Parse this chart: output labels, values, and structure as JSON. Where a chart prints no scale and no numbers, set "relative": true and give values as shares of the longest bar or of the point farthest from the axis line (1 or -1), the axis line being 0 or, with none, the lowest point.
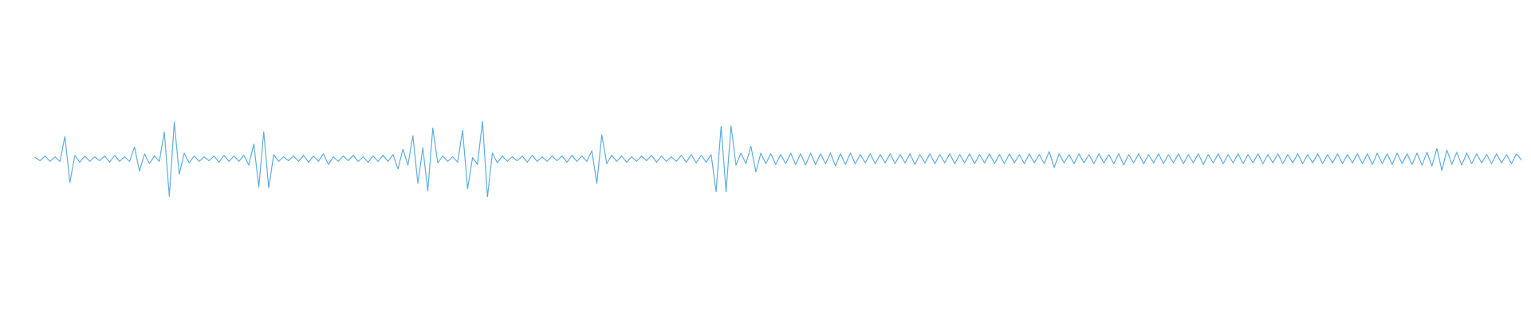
{
  "chart_data": {
    "type": "line",
    "relative": true,
    "categories": [
      null,
      null,
      null,
      null,
      null,
      null,
      null,
      null,
      null,
      null,
      null,
      null,
      null,
      null,
      null,
      null,
      null,
      null,
      null,
      null,
      null,
      null,
      null,
      null,
      null,
      null,
      null,
      null,
      null,
      null,
      null,
      null,
      null,
      null,
      null,
      null,
      null,
      null,
      null,
      null,
      null,
      null,
      null,
      null,
      null,
      null,
      null,
      null,
      null,
      null,
      null,
      null,
      null,
      null,
      null,
      null,
      null,
      null,
      null,
      null,
      null,
      null,
      null,
      null,
      null,
      null,
      null,
      null,
      null,
      null,
      null,
      null,
      null,
      null,
      null,
      null,
      null,
      null,
      null,
      null,
      null,
      null,
      null,
      null,
      null,
      null,
      null,
      null,
      null,
      null,
      null,
      null,
      null,
      null,
      null,
      null,
      null,
      null,
      null,
      null,
      null,
      null,
      null,
      null,
      null,
      null,
      null,
      null,
      null,
      null,
      null,
      null,
      null,
      null,
      null,
      null,
      null,
      null,
      null,
      null,
      null,
      null,
      null,
      null,
      null,
      null,
      null,
      null,
      null,
      null,
      null,
      null,
      null,
      null,
      null,
      null,
      null,
      null,
      null,
      null,
      null,
      null,
      null,
      null,
      null,
      null,
      null,
      null,
      null,
      null,
      null,
      null,
      null,
      null,
      null,
      null,
      null,
      null,
      null,
      null,
      null,
      null,
      null,
      null,
      null,
      null,
      null,
      null,
      null,
      null,
      null,
      null,
      null,
      null,
      null,
      null,
      null,
      null,
      null,
      null,
      null,
      null,
      null,
      null,
      null,
      null,
      null,
      null,
      null,
      null,
      null,
      null,
      null,
      null,
      null,
      null,
      null,
      null,
      null,
      null,
      null,
      null,
      null,
      null,
      null,
      null,
      null,
      null,
      null,
      null,
      null,
      null,
      null,
      null,
      null,
      null,
      null,
      null,
      null,
      null,
      null,
      null,
      null,
      null,
      null,
      null,
      null,
      null,
      null,
      null,
      null,
      null,
      null,
      null,
      null,
      null,
      null,
      null,
      null,
      null,
      null,
      null,
      null,
      null,
      null,
      null,
      null,
      null,
      null,
      null,
      null,
      null,
      null,
      null,
      null,
      null,
      null,
      null,
      null,
      null,
      null,
      null,
      null,
      null,
      null,
      null,
      null,
      null,
      null,
      null,
      null,
      null,
      null,
      null,
      null,
      null,
      null,
      null,
      null,
      null,
      null,
      null,
      null,
      null,
      null,
      null,
      null,
      null,
      null,
      null,
      null,
      null,
      null,
      null,
      null,
      null,
      null,
      null,
      null,
      null
    ],
    "series": [
      {
        "color": "#5dade2",
        "values": [
          0.52,
          0.48,
          0.54,
          0.47,
          0.53,
          0.47,
          0.8,
          0.19,
          0.55,
          0.46,
          0.54,
          0.47,
          0.53,
          0.48,
          0.54,
          0.46,
          0.55,
          0.47,
          0.53,
          0.47,
          0.66,
          0.34,
          0.57,
          0.44,
          0.54,
          0.47,
          0.86,
          0.01,
          0.99,
          0.3,
          0.58,
          0.45,
          0.54,
          0.47,
          0.53,
          0.48,
          0.54,
          0.46,
          0.55,
          0.47,
          0.54,
          0.47,
          0.55,
          0.42,
          0.7,
          0.13,
          0.86,
          0.12,
          0.56,
          0.47,
          0.53,
          0.48,
          0.54,
          0.47,
          0.55,
          0.46,
          0.54,
          0.47,
          0.57,
          0.43,
          0.53,
          0.47,
          0.54,
          0.48,
          0.55,
          0.47,
          0.53,
          0.46,
          0.54,
          0.47,
          0.55,
          0.47,
          0.56,
          0.37,
          0.63,
          0.42,
          0.81,
          0.18,
          0.65,
          0.08,
          0.91,
          0.45,
          0.54,
          0.47,
          0.53,
          0.46,
          0.88,
          0.11,
          0.52,
          0.43,
          1.0,
          0.0,
          0.58,
          0.45,
          0.54,
          0.47,
          0.53,
          0.48,
          0.54,
          0.46,
          0.55,
          0.47,
          0.53,
          0.47,
          0.54,
          0.48,
          0.54,
          0.46,
          0.55,
          0.47,
          0.54,
          0.47,
          0.61,
          0.18,
          0.82,
          0.44,
          0.55,
          0.47,
          0.54,
          0.46,
          0.53,
          0.47,
          0.54,
          0.48,
          0.55,
          0.46,
          0.54,
          0.47,
          0.53,
          0.47,
          0.55,
          0.46,
          0.56,
          0.45,
          0.55,
          0.46,
          0.56,
          0.07,
          0.93,
          0.07,
          0.94,
          0.42,
          0.58,
          0.44,
          0.67,
          0.33,
          0.58,
          0.44,
          0.57,
          0.43,
          0.56,
          0.44,
          0.58,
          0.43,
          0.57,
          0.42,
          0.58,
          0.43,
          0.57,
          0.44,
          0.58,
          0.41,
          0.57,
          0.43,
          0.58,
          0.44,
          0.56,
          0.45,
          0.57,
          0.44,
          0.56,
          0.45,
          0.57,
          0.44,
          0.56,
          0.45,
          0.57,
          0.43,
          0.56,
          0.45,
          0.57,
          0.44,
          0.56,
          0.45,
          0.57,
          0.44,
          0.56,
          0.45,
          0.57,
          0.44,
          0.56,
          0.45,
          0.57,
          0.44,
          0.56,
          0.44,
          0.57,
          0.45,
          0.56,
          0.44,
          0.57,
          0.45,
          0.56,
          0.44,
          0.6,
          0.39,
          0.57,
          0.45,
          0.56,
          0.44,
          0.57,
          0.45,
          0.56,
          0.44,
          0.57,
          0.45,
          0.56,
          0.44,
          0.57,
          0.42,
          0.56,
          0.45,
          0.57,
          0.44,
          0.56,
          0.45,
          0.57,
          0.44,
          0.56,
          0.45,
          0.57,
          0.44,
          0.56,
          0.45,
          0.57,
          0.43,
          0.56,
          0.45,
          0.57,
          0.44,
          0.56,
          0.45,
          0.57,
          0.44,
          0.56,
          0.45,
          0.57,
          0.44,
          0.56,
          0.45,
          0.57,
          0.44,
          0.56,
          0.45,
          0.57,
          0.44,
          0.56,
          0.45,
          0.57,
          0.44,
          0.56,
          0.45,
          0.57,
          0.44,
          0.56,
          0.45,
          0.57,
          0.44,
          0.57,
          0.43,
          0.58,
          0.44,
          0.57,
          0.43,
          0.58,
          0.44,
          0.57,
          0.43,
          0.58,
          0.42,
          0.59,
          0.41,
          0.64,
          0.35,
          0.62,
          0.43,
          0.59,
          0.42,
          0.58,
          0.44,
          0.57,
          0.45,
          0.56,
          0.44,
          0.57,
          0.45,
          0.56,
          0.44,
          0.57,
          0.49
        ]
      }
    ]
  }
}
